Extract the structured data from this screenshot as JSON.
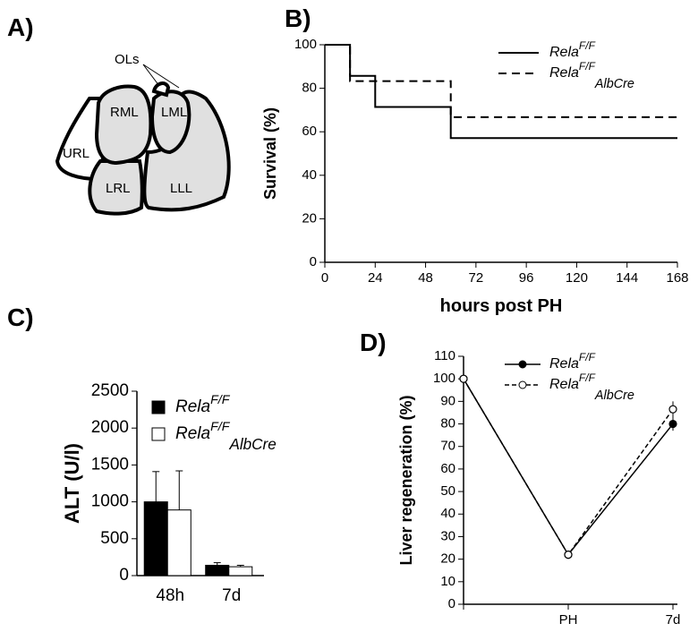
{
  "diagram": {
    "panel": "A)",
    "labels": [
      "OLs",
      "RML",
      "LML",
      "URL",
      "LRL",
      "LLL"
    ]
  },
  "chart_data": [
    {
      "type": "step",
      "panel": "B)",
      "x_label": "hours post PH",
      "y_label": "Survival (%)",
      "xlim": [
        0,
        168
      ],
      "xticks": [
        0,
        24,
        48,
        72,
        96,
        120,
        144,
        168
      ],
      "ylim": [
        0,
        100
      ],
      "yticks": [
        0,
        20,
        40,
        60,
        80,
        100
      ],
      "legend": "upper right",
      "series": [
        {
          "name": "Rela",
          "superscript": "F/F",
          "color": "#000000",
          "line_style": "solid",
          "x": [
            0,
            12,
            24,
            60,
            168
          ],
          "values": [
            100,
            85.7,
            71.4,
            57.1,
            57.1
          ]
        },
        {
          "name": "Rela",
          "superscript": "F/F",
          "subscript": "AlbCre",
          "color": "#000000",
          "line_style": "dashed",
          "x": [
            0,
            12,
            60,
            168
          ],
          "values": [
            100,
            83.3,
            66.7,
            66.7
          ]
        }
      ]
    },
    {
      "type": "bar",
      "panel": "C)",
      "y_label": "ALT (U/l)",
      "categories": [
        "48h",
        "7d"
      ],
      "ylim": [
        0,
        2500
      ],
      "yticks": [
        0,
        500,
        1000,
        1500,
        2000,
        2500
      ],
      "legend": "upper left",
      "series": [
        {
          "name": "Rela",
          "superscript": "F/F",
          "color": "#000000",
          "values": [
            1000,
            140
          ],
          "errors": [
            410,
            35
          ]
        },
        {
          "name": "Rela",
          "superscript": "F/F",
          "subscript": "AlbCre",
          "color": "#ffffff",
          "values": [
            890,
            120
          ],
          "errors": [
            530,
            20
          ]
        }
      ]
    },
    {
      "type": "line",
      "panel": "D)",
      "y_label": "Liver regeneration (%)",
      "categories": [
        null,
        "PH",
        "7d"
      ],
      "ylim": [
        0,
        110
      ],
      "yticks": [
        0,
        10,
        20,
        30,
        40,
        50,
        60,
        70,
        80,
        90,
        100,
        110
      ],
      "legend": "upper left",
      "series": [
        {
          "name": "Rela",
          "superscript": "F/F",
          "color": "#000000",
          "line_style": "solid",
          "marker_fill": "#000000",
          "values": [
            100,
            22,
            80
          ],
          "errors": [
            0,
            1,
            3
          ]
        },
        {
          "name": "Rela",
          "superscript": "F/F",
          "subscript": "AlbCre",
          "color": "#000000",
          "line_style": "dashed",
          "marker_fill": "#ffffff",
          "values": [
            100,
            22,
            86.5
          ],
          "errors": [
            0,
            1,
            3.5
          ]
        }
      ]
    }
  ]
}
